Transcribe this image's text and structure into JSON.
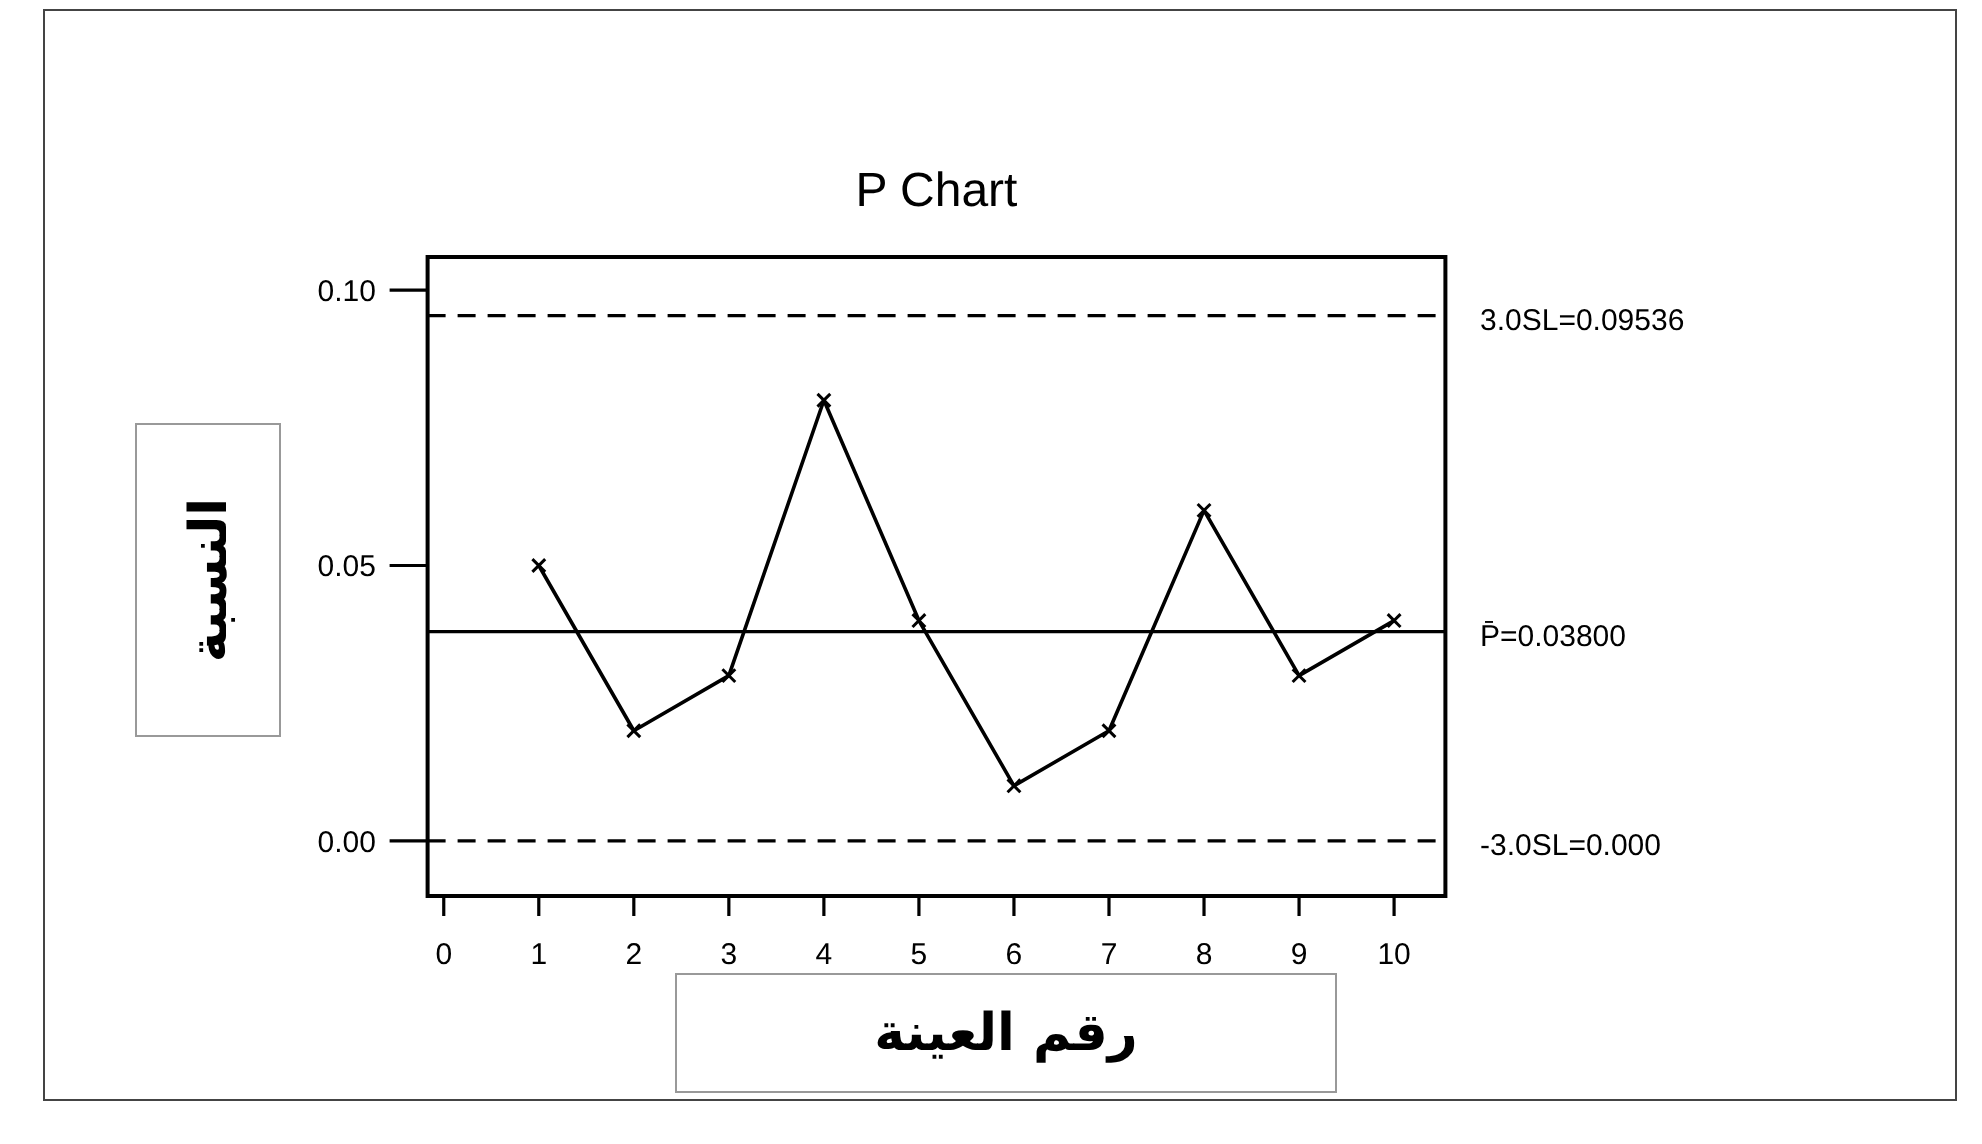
{
  "chart_data": {
    "type": "line",
    "title": "P Chart",
    "xlabel": "رقم العينة",
    "ylabel": "النسبة",
    "x": [
      1,
      2,
      3,
      4,
      5,
      6,
      7,
      8,
      9,
      10
    ],
    "series": [
      {
        "color": "#000000",
        "values": [
          0.05,
          0.02,
          0.03,
          0.08,
          0.04,
          0.01,
          0.02,
          0.06,
          0.03,
          0.04
        ]
      }
    ],
    "marker": "cross",
    "line_style": "solid",
    "xlim": [
      -0.17,
      10.54
    ],
    "ylim": [
      -0.01,
      0.106
    ],
    "xticks": [
      0,
      1,
      2,
      3,
      4,
      5,
      6,
      7,
      8,
      9,
      10
    ],
    "yticks": [
      {
        "value": 0,
        "label": "0.00"
      },
      {
        "value": 0.05,
        "label": "0.05"
      },
      {
        "value": 0.1,
        "label": "0.10"
      }
    ],
    "ref_lines": [
      {
        "axis": "y",
        "value": 0.09536,
        "label": "3.0SL=0.09536",
        "line_style": "dashed"
      },
      {
        "axis": "y",
        "value": 0.038,
        "label": "P̄=0.03800",
        "line_style": "solid"
      },
      {
        "axis": "y",
        "value": 0,
        "label": "-3.0SL=0.000",
        "line_style": "dashed"
      }
    ]
  }
}
